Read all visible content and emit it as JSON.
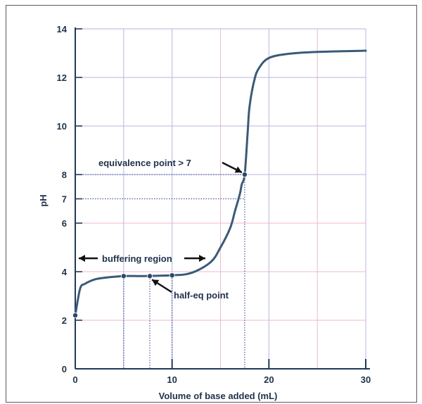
{
  "chart_data": {
    "type": "line",
    "title": "",
    "xlabel": "Volume of base added (mL)",
    "ylabel": "pH",
    "xlim": [
      0,
      30
    ],
    "ylim": [
      0,
      14
    ],
    "x_ticks": [
      0,
      10,
      20,
      30
    ],
    "y_ticks": [
      0,
      2,
      4,
      6,
      7,
      8,
      10,
      12,
      14
    ],
    "grid": true,
    "colors": {
      "curve": "#3a5a78",
      "axis": "#1f3a5a",
      "grid_light": "#b5b5e6",
      "grid_pink": "#f0b6d2",
      "guide": "#2a3a8a",
      "marker": "#2a4a6a"
    },
    "series": [
      {
        "x": [
          0,
          0.5,
          1,
          2,
          3,
          5,
          7,
          10,
          12,
          14,
          15,
          16,
          16.5,
          17,
          17.2,
          17.5,
          17.8,
          18,
          18.5,
          19,
          20,
          22,
          25,
          30
        ],
        "y": [
          2.2,
          3.3,
          3.5,
          3.68,
          3.75,
          3.82,
          3.82,
          3.85,
          3.95,
          4.4,
          5.0,
          5.8,
          6.5,
          7.2,
          7.6,
          8.0,
          9.7,
          10.8,
          11.9,
          12.4,
          12.8,
          12.97,
          13.05,
          13.1
        ]
      }
    ],
    "points": [
      {
        "name": "start",
        "x": 0,
        "y": 2.2
      },
      {
        "name": "buffer-start",
        "x": 5,
        "y": 3.82
      },
      {
        "name": "half-eq",
        "x": 7.7,
        "y": 3.82
      },
      {
        "name": "buffer-end",
        "x": 10,
        "y": 3.85
      },
      {
        "name": "equivalence",
        "x": 17.5,
        "y": 8.0
      }
    ],
    "annotations": {
      "equivalence": "equivalence point > 7",
      "buffering": "buffering region",
      "half_eq": "half-eq point"
    }
  }
}
